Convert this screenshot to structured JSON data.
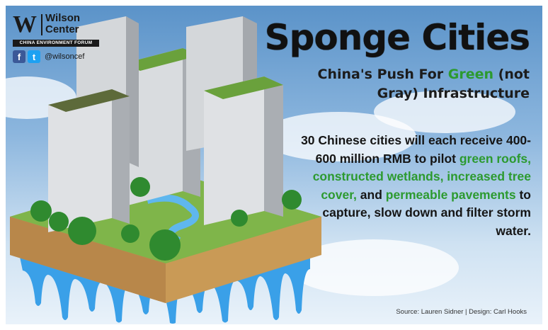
{
  "logo": {
    "mark": "W",
    "name_line1": "Wilson",
    "name_line2": "Center",
    "forum": "CHINA ENVIRONMENT FORUM",
    "facebook_glyph": "f",
    "twitter_glyph": "t",
    "handle": "@wilsoncef"
  },
  "title": "Sponge Cities",
  "subtitle": {
    "part1": "China's Push For ",
    "green": "Green",
    "part2": " (not Gray) Infrastructure"
  },
  "body": {
    "intro": "30 Chinese cities will each receive 400-600 million RMB to pilot ",
    "highlight1": "green roofs, constructed wetlands, increased tree cover,",
    "and": " and ",
    "highlight2": "permeable pavements",
    "outro": " to capture, slow down and filter storm water."
  },
  "source": "Source: Lauren Sidner | Design: Carl Hooks",
  "colors": {
    "accent_green": "#2c9a2f",
    "title": "#111111",
    "sky": "#8cb6de",
    "soil": "#c99a56",
    "grass": "#7fb54a",
    "water": "#3aa0e8"
  },
  "icons": [
    "wilson-center-logo-icon",
    "facebook-icon",
    "twitter-icon",
    "floating-island-illustration"
  ]
}
